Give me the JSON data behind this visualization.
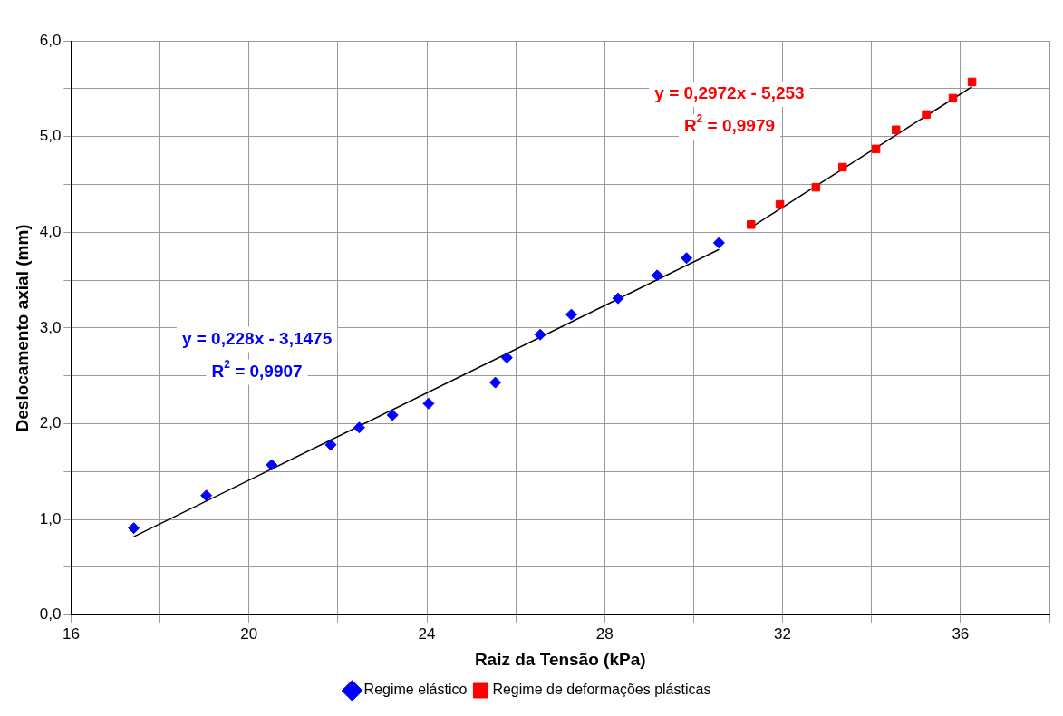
{
  "chart_data": {
    "type": "scatter",
    "xlabel": "Raiz da Tensão (kPa)",
    "ylabel": "Deslocamento axial (mm)",
    "xlim": [
      16,
      38
    ],
    "xticks": [
      16,
      {
        "value": 18,
        "label": null
      },
      20,
      {
        "value": 22,
        "label": null
      },
      24,
      {
        "value": 26,
        "label": null
      },
      28,
      {
        "value": 30,
        "label": null
      },
      32,
      {
        "value": 34,
        "label": null
      },
      36,
      {
        "value": 38,
        "label": null
      }
    ],
    "ylim": [
      0,
      6
    ],
    "yticks": [
      {
        "value": 0,
        "label": "0,0"
      },
      {
        "value": 0.5,
        "label": null
      },
      {
        "value": 1,
        "label": "1,0"
      },
      {
        "value": 1.5,
        "label": null
      },
      {
        "value": 2,
        "label": "2,0"
      },
      {
        "value": 2.5,
        "label": null
      },
      {
        "value": 3,
        "label": "3,0"
      },
      {
        "value": 3.5,
        "label": null
      },
      {
        "value": 4,
        "label": "4,0"
      },
      {
        "value": 4.5,
        "label": null
      },
      {
        "value": 5,
        "label": "5,0"
      },
      {
        "value": 5.5,
        "label": null
      },
      {
        "value": 6,
        "label": "6,0"
      }
    ],
    "grid": true,
    "legend": "bottom",
    "series": [
      {
        "name": "Regime elástico",
        "type": "scatter",
        "marker": "diamond",
        "color": "#0000ff",
        "x": [
          17.41,
          19.04,
          20.51,
          21.84,
          22.48,
          23.23,
          24.04,
          25.54,
          25.8,
          26.55,
          27.25,
          28.3,
          29.18,
          29.84,
          30.57
        ],
        "values": [
          0.91,
          1.25,
          1.57,
          1.78,
          1.96,
          2.09,
          2.21,
          2.43,
          2.69,
          2.93,
          3.14,
          3.31,
          3.55,
          3.73,
          3.89
        ]
      },
      {
        "name": "Regime de deformações plásticas",
        "type": "scatter",
        "marker": "square",
        "color": "#ff0000",
        "x": [
          31.29,
          31.94,
          32.75,
          33.35,
          34.1,
          34.55,
          35.23,
          35.83,
          36.26
        ],
        "values": [
          4.08,
          4.29,
          4.47,
          4.68,
          4.87,
          5.07,
          5.23,
          5.4,
          5.57
        ]
      },
      {
        "type": "line",
        "marker": "none",
        "color": "#000000",
        "x": [
          17.41,
          30.57
        ],
        "values": [
          0.82,
          3.82
        ]
      },
      {
        "type": "line",
        "marker": "none",
        "color": "#000000",
        "x": [
          31.29,
          36.26
        ],
        "values": [
          4.05,
          5.52
        ]
      }
    ],
    "annotations": [
      "y = 0,228x - 3,1475",
      "R$^{2}$ = 0,9907",
      "y = 0,2972x - 5,253",
      "R$^{2}$ = 0,9979"
    ]
  }
}
